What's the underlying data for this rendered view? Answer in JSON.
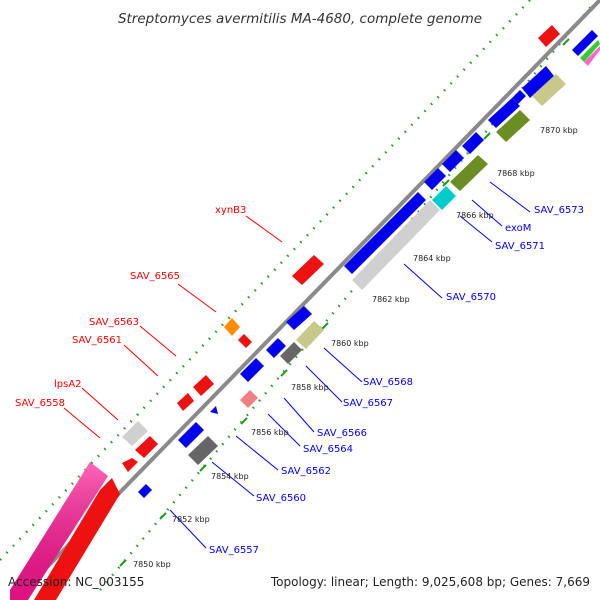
{
  "title": "Streptomyces avermitilis MA-4680, complete genome",
  "accession": "Accession: NC_003155",
  "topology": "Topology: linear; Length: 9,025,608 bp; Genes: 7,669",
  "colors": {
    "red_label": "#ff0000",
    "blue_label": "#0000ff",
    "axis": "#8a8a8a",
    "ticks": "#1f9a1f"
  },
  "ticks": [
    {
      "id": "t7850",
      "label": "7850 kbp"
    },
    {
      "id": "t7852",
      "label": "7852 kbp"
    },
    {
      "id": "t7854",
      "label": "7854 kbp"
    },
    {
      "id": "t7856",
      "label": "7856 kbp"
    },
    {
      "id": "t7858",
      "label": "7858 kbp"
    },
    {
      "id": "t7860",
      "label": "7860 kbp"
    },
    {
      "id": "t7862",
      "label": "7862 kbp"
    },
    {
      "id": "t7864",
      "label": "7864 kbp"
    },
    {
      "id": "t7866",
      "label": "7866 kbp"
    },
    {
      "id": "t7868",
      "label": "7868 kbp"
    },
    {
      "id": "t7870",
      "label": "7870 kbp"
    }
  ],
  "labels_left": [
    {
      "id": "xynB3",
      "text": "xynB3"
    },
    {
      "id": "SAV_6565",
      "text": "SAV_6565"
    },
    {
      "id": "SAV_6563",
      "text": "SAV_6563"
    },
    {
      "id": "SAV_6561",
      "text": "SAV_6561"
    },
    {
      "id": "lpsA2",
      "text": "lpsA2"
    },
    {
      "id": "SAV_6558",
      "text": "SAV_6558"
    }
  ],
  "labels_right": [
    {
      "id": "SAV_6573",
      "text": "SAV_6573"
    },
    {
      "id": "exoM",
      "text": "exoM"
    },
    {
      "id": "SAV_6571",
      "text": "SAV_6571"
    },
    {
      "id": "SAV_6570",
      "text": "SAV_6570"
    },
    {
      "id": "SAV_6568",
      "text": "SAV_6568"
    },
    {
      "id": "SAV_6567",
      "text": "SAV_6567"
    },
    {
      "id": "SAV_6566",
      "text": "SAV_6566"
    },
    {
      "id": "SAV_6564",
      "text": "SAV_6564"
    },
    {
      "id": "SAV_6562",
      "text": "SAV_6562"
    },
    {
      "id": "SAV_6560",
      "text": "SAV_6560"
    },
    {
      "id": "SAV_6557",
      "text": "SAV_6557"
    }
  ]
}
